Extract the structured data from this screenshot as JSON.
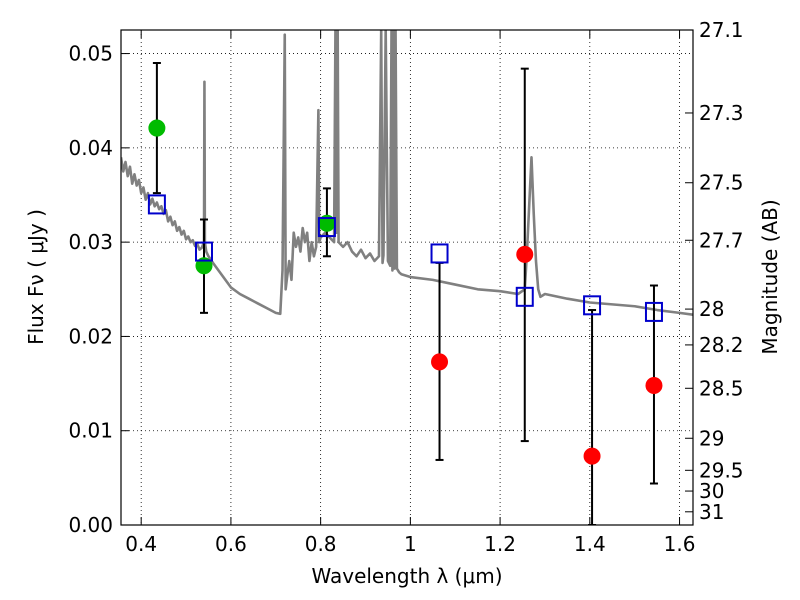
{
  "chart_data": {
    "type": "scatter",
    "xlabel": "Wavelength  λ (μm)",
    "ylabel": "Flux  Fν  ( μJy )",
    "ylabel_right": "Magnitude (AB)",
    "xlim": [
      0.355,
      1.63
    ],
    "ylim": [
      0.0,
      0.0525
    ],
    "grid": true,
    "x_ticks": [
      0.4,
      0.6,
      0.8,
      1.0,
      1.2,
      1.4,
      1.6
    ],
    "x_tick_labels": [
      "0.4",
      "0.6",
      "0.8",
      "1",
      "1.2",
      "1.4",
      "1.6"
    ],
    "y_ticks": [
      0.0,
      0.01,
      0.02,
      0.03,
      0.04,
      0.05
    ],
    "y_tick_labels": [
      "0.00",
      "0.01",
      "0.02",
      "0.03",
      "0.04",
      "0.05"
    ],
    "right_ticks": [
      {
        "label": "27.1",
        "flux": 0.0525
      },
      {
        "label": "27.3",
        "flux": 0.0437
      },
      {
        "label": "27.5",
        "flux": 0.0363
      },
      {
        "label": "27.7",
        "flux": 0.0302
      },
      {
        "label": "28",
        "flux": 0.0229
      },
      {
        "label": "28.2",
        "flux": 0.0191
      },
      {
        "label": "28.5",
        "flux": 0.0145
      },
      {
        "label": "29",
        "flux": 0.0092
      },
      {
        "label": "29.5",
        "flux": 0.0058
      },
      {
        "label": "30",
        "flux": 0.0036
      },
      {
        "label": "31",
        "flux": 0.0014
      }
    ],
    "series": [
      {
        "role": "observed-detections",
        "marker": "circle",
        "color": "#00bb00",
        "points": [
          {
            "x": 0.435,
            "y": 0.0421
          },
          {
            "x": 0.54,
            "y": 0.0275
          },
          {
            "x": 0.814,
            "y": 0.032
          }
        ]
      },
      {
        "role": "observed-upper-limits",
        "marker": "circle",
        "color": "#ff0000",
        "points": [
          {
            "x": 1.065,
            "y": 0.0173
          },
          {
            "x": 1.255,
            "y": 0.0287
          },
          {
            "x": 1.405,
            "y": 0.0073
          },
          {
            "x": 1.543,
            "y": 0.0148
          }
        ]
      },
      {
        "role": "model-synthetic-photometry",
        "marker": "square",
        "color": "#0000cc",
        "points": [
          {
            "x": 0.435,
            "y": 0.034
          },
          {
            "x": 0.54,
            "y": 0.029
          },
          {
            "x": 0.814,
            "y": 0.0316
          },
          {
            "x": 1.065,
            "y": 0.0288
          },
          {
            "x": 1.255,
            "y": 0.0242
          },
          {
            "x": 1.405,
            "y": 0.0233
          },
          {
            "x": 1.543,
            "y": 0.0226
          }
        ]
      }
    ],
    "error_bars": [
      {
        "x": 0.435,
        "low": 0.0352,
        "high": 0.049
      },
      {
        "x": 0.54,
        "low": 0.0225,
        "high": 0.0324
      },
      {
        "x": 0.814,
        "low": 0.0285,
        "high": 0.0357
      },
      {
        "x": 1.065,
        "low": 0.0069,
        "high": 0.0278
      },
      {
        "x": 1.255,
        "low": 0.0089,
        "high": 0.0484
      },
      {
        "x": 1.405,
        "low": 0.0,
        "high": 0.0228
      },
      {
        "x": 1.543,
        "low": 0.0044,
        "high": 0.0254
      }
    ],
    "model_spectrum": {
      "color": "#808080",
      "x": [
        0.355,
        0.36,
        0.365,
        0.37,
        0.375,
        0.38,
        0.385,
        0.39,
        0.395,
        0.4,
        0.405,
        0.41,
        0.415,
        0.42,
        0.425,
        0.43,
        0.435,
        0.44,
        0.445,
        0.45,
        0.455,
        0.46,
        0.465,
        0.47,
        0.475,
        0.48,
        0.485,
        0.49,
        0.495,
        0.5,
        0.505,
        0.51,
        0.515,
        0.52,
        0.525,
        0.53,
        0.535,
        0.54,
        0.541,
        0.542,
        0.545,
        0.55,
        0.56,
        0.58,
        0.6,
        0.62,
        0.64,
        0.66,
        0.68,
        0.7,
        0.71,
        0.715,
        0.72,
        0.722,
        0.725,
        0.73,
        0.735,
        0.74,
        0.745,
        0.75,
        0.755,
        0.76,
        0.765,
        0.77,
        0.775,
        0.78,
        0.785,
        0.79,
        0.795,
        0.797,
        0.8,
        0.81,
        0.82,
        0.83,
        0.833,
        0.835,
        0.838,
        0.84,
        0.85,
        0.86,
        0.87,
        0.88,
        0.89,
        0.9,
        0.91,
        0.92,
        0.93,
        0.935,
        0.938,
        0.94,
        0.945,
        0.95,
        0.955,
        0.958,
        0.96,
        0.962,
        0.965,
        0.967,
        0.97,
        0.975,
        0.98,
        1.0,
        1.05,
        1.1,
        1.15,
        1.2,
        1.24,
        1.255,
        1.26,
        1.265,
        1.27,
        1.275,
        1.28,
        1.285,
        1.29,
        1.3,
        1.35,
        1.4,
        1.45,
        1.5,
        1.55,
        1.6,
        1.63
      ],
      "y": [
        0.039,
        0.0375,
        0.0385,
        0.037,
        0.038,
        0.0362,
        0.0372,
        0.036,
        0.0366,
        0.0352,
        0.0358,
        0.0345,
        0.0352,
        0.034,
        0.0346,
        0.0338,
        0.0342,
        0.0335,
        0.0338,
        0.033,
        0.0334,
        0.0322,
        0.0327,
        0.0318,
        0.0322,
        0.0312,
        0.0316,
        0.0308,
        0.0312,
        0.0303,
        0.0306,
        0.03,
        0.0302,
        0.0296,
        0.0298,
        0.0292,
        0.0294,
        0.03,
        0.047,
        0.03,
        0.029,
        0.0285,
        0.0278,
        0.0265,
        0.0252,
        0.0245,
        0.024,
        0.0235,
        0.023,
        0.0225,
        0.0224,
        0.027,
        0.052,
        0.025,
        0.0262,
        0.028,
        0.026,
        0.031,
        0.0295,
        0.0305,
        0.029,
        0.0315,
        0.03,
        0.031,
        0.028,
        0.03,
        0.0285,
        0.0295,
        0.044,
        0.03,
        0.0305,
        0.031,
        0.0305,
        0.03,
        0.0525,
        0.031,
        0.0525,
        0.03,
        0.0295,
        0.03,
        0.029,
        0.0285,
        0.0292,
        0.0283,
        0.0288,
        0.028,
        0.0285,
        0.0525,
        0.0278,
        0.0286,
        0.0525,
        0.028,
        0.0275,
        0.0525,
        0.027,
        0.0525,
        0.0272,
        0.0525,
        0.0272,
        0.0268,
        0.0266,
        0.0263,
        0.026,
        0.0255,
        0.025,
        0.0248,
        0.0245,
        0.025,
        0.029,
        0.034,
        0.039,
        0.033,
        0.028,
        0.025,
        0.0242,
        0.0245,
        0.024,
        0.0236,
        0.0234,
        0.0232,
        0.0228,
        0.0225,
        0.0223
      ]
    }
  }
}
